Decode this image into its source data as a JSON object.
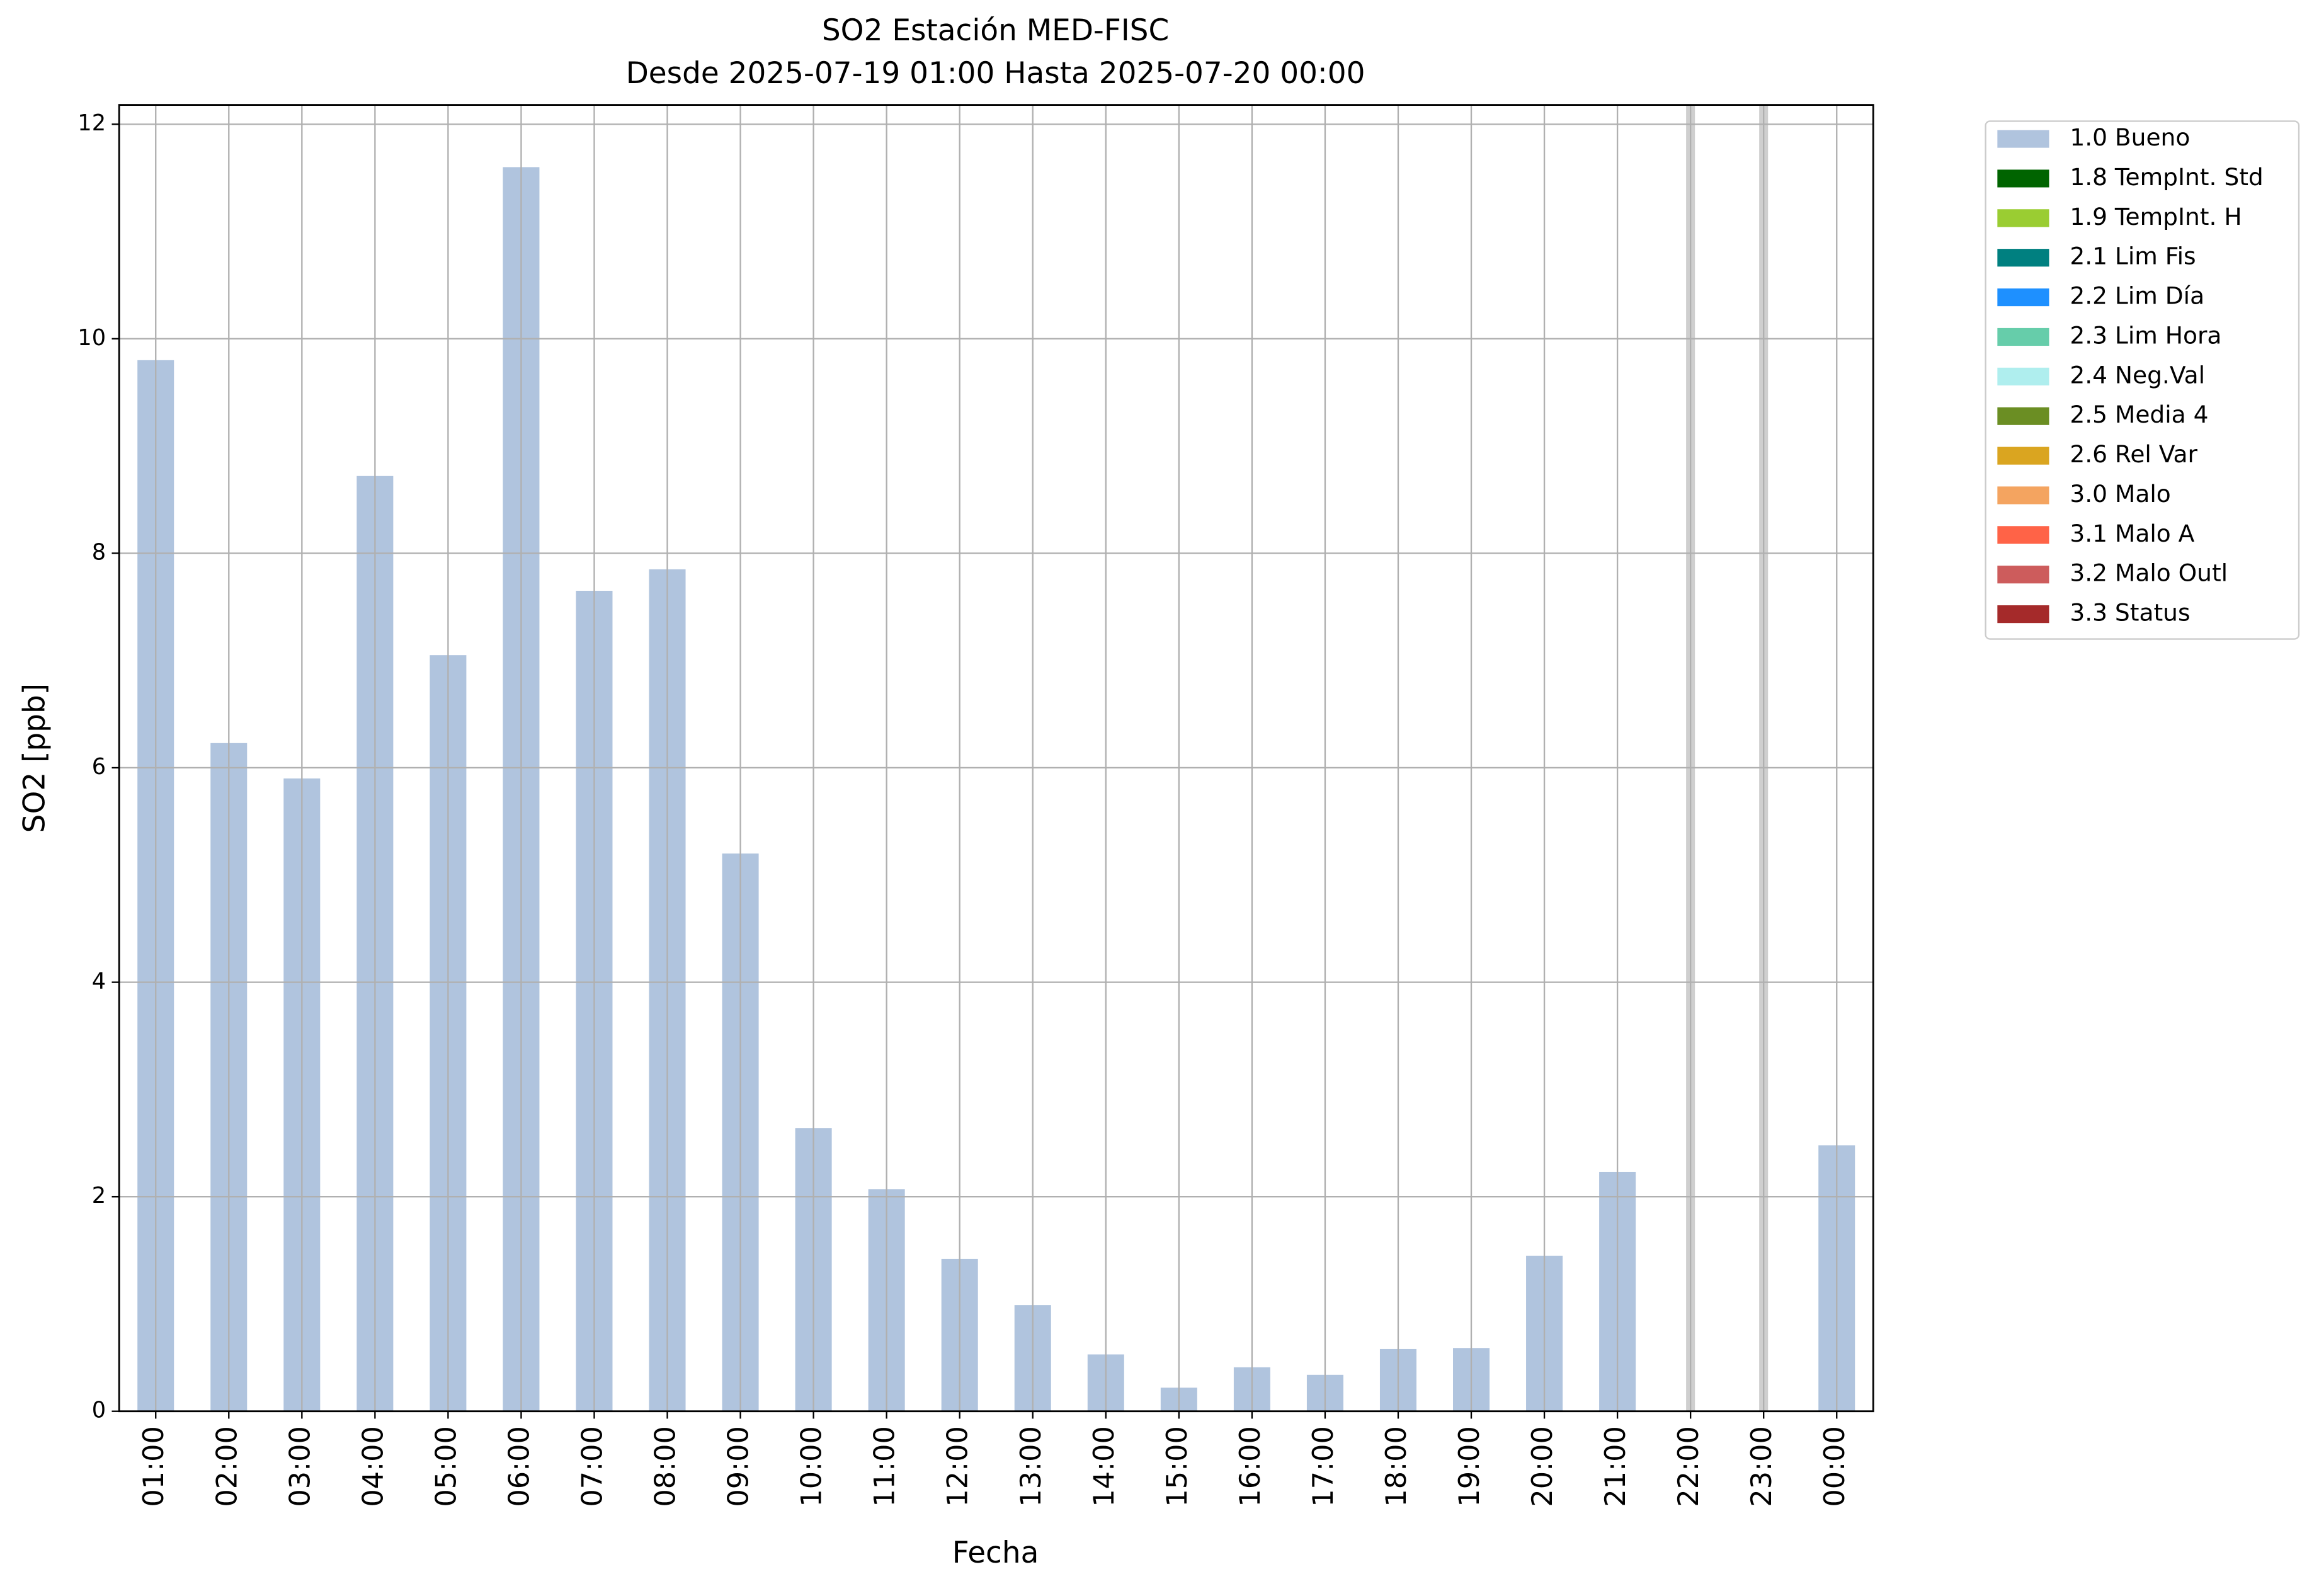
{
  "chart_data": {
    "type": "bar",
    "title": "SO2 Estación MED-FISC",
    "subtitle": "Desde 2025-07-19 01:00 Hasta 2025-07-20 00:00",
    "x_label": "Fecha",
    "y_label": "SO2 [ppb]",
    "categories": [
      "01:00",
      "02:00",
      "03:00",
      "04:00",
      "05:00",
      "06:00",
      "07:00",
      "08:00",
      "09:00",
      "10:00",
      "11:00",
      "12:00",
      "13:00",
      "14:00",
      "15:00",
      "16:00",
      "17:00",
      "18:00",
      "19:00",
      "20:00",
      "21:00",
      "22:00",
      "23:00",
      "00:00"
    ],
    "series": [
      {
        "name": "1.0 Bueno",
        "color": "#b0c4de",
        "values": [
          9.8,
          6.23,
          5.9,
          8.72,
          7.05,
          11.6,
          7.65,
          7.85,
          5.2,
          2.64,
          2.07,
          1.42,
          0.99,
          0.53,
          0.22,
          0.41,
          0.34,
          0.58,
          0.59,
          1.45,
          2.23,
          null,
          null,
          2.48
        ]
      },
      {
        "name": "1.8 TempInt. Std",
        "color": "#006400",
        "values": [
          null,
          null,
          null,
          null,
          null,
          null,
          null,
          null,
          null,
          null,
          null,
          null,
          null,
          null,
          null,
          null,
          null,
          null,
          null,
          null,
          null,
          null,
          null,
          null
        ]
      },
      {
        "name": "1.9 TempInt. H",
        "color": "#9acd32",
        "values": [
          null,
          null,
          null,
          null,
          null,
          null,
          null,
          null,
          null,
          null,
          null,
          null,
          null,
          null,
          null,
          null,
          null,
          null,
          null,
          null,
          null,
          null,
          null,
          null
        ]
      },
      {
        "name": "2.1 Lim Fis",
        "color": "#008080",
        "values": [
          null,
          null,
          null,
          null,
          null,
          null,
          null,
          null,
          null,
          null,
          null,
          null,
          null,
          null,
          null,
          null,
          null,
          null,
          null,
          null,
          null,
          null,
          null,
          null
        ]
      },
      {
        "name": "2.2 Lim Día",
        "color": "#1e90ff",
        "values": [
          null,
          null,
          null,
          null,
          null,
          null,
          null,
          null,
          null,
          null,
          null,
          null,
          null,
          null,
          null,
          null,
          null,
          null,
          null,
          null,
          null,
          null,
          null,
          null
        ]
      },
      {
        "name": "2.3 Lim Hora",
        "color": "#66cdaa",
        "values": [
          null,
          null,
          null,
          null,
          null,
          null,
          null,
          null,
          null,
          null,
          null,
          null,
          null,
          null,
          null,
          null,
          null,
          null,
          null,
          null,
          null,
          null,
          null,
          null
        ]
      },
      {
        "name": "2.4 Neg.Val",
        "color": "#afeeee",
        "values": [
          null,
          null,
          null,
          null,
          null,
          null,
          null,
          null,
          null,
          null,
          null,
          null,
          null,
          null,
          null,
          null,
          null,
          null,
          null,
          null,
          null,
          null,
          null,
          null
        ]
      },
      {
        "name": "2.5 Media 4",
        "color": "#6b8e23",
        "values": [
          null,
          null,
          null,
          null,
          null,
          null,
          null,
          null,
          null,
          null,
          null,
          null,
          null,
          null,
          null,
          null,
          null,
          null,
          null,
          null,
          null,
          null,
          null,
          null
        ]
      },
      {
        "name": "2.6 Rel Var",
        "color": "#daa520",
        "values": [
          null,
          null,
          null,
          null,
          null,
          null,
          null,
          null,
          null,
          null,
          null,
          null,
          null,
          null,
          null,
          null,
          null,
          null,
          null,
          null,
          null,
          null,
          null,
          null
        ]
      },
      {
        "name": "3.0 Malo",
        "color": "#f4a460",
        "values": [
          null,
          null,
          null,
          null,
          null,
          null,
          null,
          null,
          null,
          null,
          null,
          null,
          null,
          null,
          null,
          null,
          null,
          null,
          null,
          null,
          null,
          null,
          null,
          null
        ]
      },
      {
        "name": "3.1 Malo A",
        "color": "#ff6347",
        "values": [
          null,
          null,
          null,
          null,
          null,
          null,
          null,
          null,
          null,
          null,
          null,
          null,
          null,
          null,
          null,
          null,
          null,
          null,
          null,
          null,
          null,
          null,
          null,
          null
        ]
      },
      {
        "name": "3.2 Malo Outl",
        "color": "#cd5c5c",
        "values": [
          null,
          null,
          null,
          null,
          null,
          null,
          null,
          null,
          null,
          null,
          null,
          null,
          null,
          null,
          null,
          null,
          null,
          null,
          null,
          null,
          null,
          null,
          null,
          null
        ]
      },
      {
        "name": "3.3 Status",
        "color": "#a52a2a",
        "values": [
          null,
          null,
          null,
          null,
          null,
          null,
          null,
          null,
          null,
          null,
          null,
          null,
          null,
          null,
          null,
          null,
          null,
          null,
          null,
          null,
          null,
          null,
          null,
          null
        ]
      }
    ],
    "ylim": [
      0,
      12.18
    ],
    "yticks": [
      0,
      2,
      4,
      6,
      8,
      10,
      12
    ],
    "grid": true,
    "legend": "outside-upper-right"
  }
}
